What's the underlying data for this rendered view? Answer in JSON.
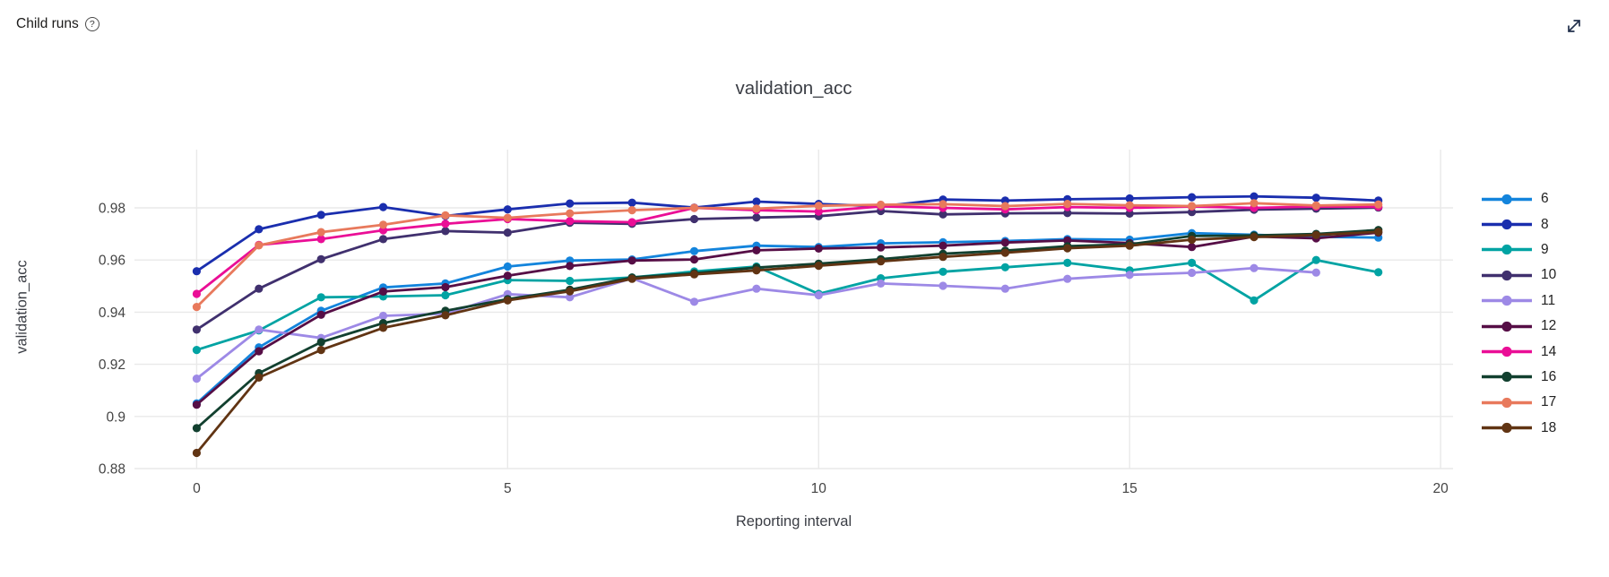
{
  "header": {
    "title": "Child runs"
  },
  "icons": {
    "help": "question-mark-circle",
    "help_glyph": "?",
    "expand": "expand-diagonal-arrow"
  },
  "colors": {
    "grid": "#e9e9e9",
    "tick_text": "#444444",
    "title_text": "#3b3e45",
    "header_text": "#1b1a19"
  },
  "chart_data": {
    "type": "line",
    "title": "validation_acc",
    "xlabel": "Reporting interval",
    "ylabel": "validation_acc",
    "x": [
      0,
      1,
      2,
      3,
      4,
      5,
      6,
      7,
      8,
      9,
      10,
      11,
      12,
      13,
      14,
      15,
      16,
      17,
      18,
      19
    ],
    "xlim": [
      -1,
      20.2
    ],
    "ylim": [
      0.88,
      0.992
    ],
    "x_ticks": [
      0,
      5,
      10,
      15,
      20
    ],
    "y_ticks": [
      0.88,
      0.9,
      0.92,
      0.94,
      0.96,
      0.98
    ],
    "y_tick_labels": [
      "0.88",
      "0.9",
      "0.92",
      "0.94",
      "0.96",
      "0.98"
    ],
    "grid": true,
    "marker": "circle",
    "legend_position": "right",
    "series": [
      {
        "name": "6",
        "color": "#1384dc",
        "values": [
          0.905,
          0.9265,
          0.9405,
          0.9495,
          0.951,
          0.9575,
          0.9598,
          0.9602,
          0.9634,
          0.9655,
          0.965,
          0.9664,
          0.9668,
          0.9673,
          0.968,
          0.9678,
          0.9703,
          0.9697,
          0.9689,
          0.9686
        ]
      },
      {
        "name": "8",
        "color": "#1a2eae",
        "values": [
          0.9557,
          0.9718,
          0.9773,
          0.9803,
          0.9769,
          0.9794,
          0.9817,
          0.982,
          0.9801,
          0.9824,
          0.9815,
          0.9806,
          0.9832,
          0.9828,
          0.9833,
          0.9836,
          0.9841,
          0.9844,
          0.9839,
          0.9828
        ]
      },
      {
        "name": "9",
        "color": "#00a3a3",
        "values": [
          0.9255,
          0.933,
          0.9457,
          0.946,
          0.9465,
          0.9523,
          0.952,
          0.9533,
          0.9556,
          0.9575,
          0.947,
          0.953,
          0.9555,
          0.9572,
          0.9589,
          0.956,
          0.9589,
          0.9445,
          0.96,
          0.9553
        ]
      },
      {
        "name": "10",
        "color": "#40306e",
        "values": [
          0.9333,
          0.949,
          0.9603,
          0.968,
          0.9711,
          0.9705,
          0.9743,
          0.9739,
          0.9757,
          0.9763,
          0.9768,
          0.9788,
          0.9775,
          0.9779,
          0.978,
          0.9778,
          0.9784,
          0.9793,
          0.9797,
          0.9801
        ]
      },
      {
        "name": "11",
        "color": "#9d89e6",
        "values": [
          0.9145,
          0.9333,
          0.9301,
          0.9386,
          0.9394,
          0.9469,
          0.9457,
          0.953,
          0.944,
          0.949,
          0.9465,
          0.951,
          0.9501,
          0.949,
          0.9528,
          0.9543,
          0.9551,
          0.9569,
          0.9552
        ]
      },
      {
        "name": "12",
        "color": "#560e46",
        "values": [
          0.9045,
          0.925,
          0.939,
          0.9479,
          0.9496,
          0.954,
          0.9577,
          0.9598,
          0.9602,
          0.9637,
          0.9644,
          0.9648,
          0.9655,
          0.9667,
          0.9675,
          0.9665,
          0.965,
          0.969,
          0.9683,
          0.9705
        ]
      },
      {
        "name": "14",
        "color": "#ea0e96",
        "values": [
          0.947,
          0.9658,
          0.968,
          0.9714,
          0.9739,
          0.9757,
          0.9749,
          0.9745,
          0.98,
          0.9791,
          0.9786,
          0.9806,
          0.98,
          0.9794,
          0.9803,
          0.98,
          0.9805,
          0.98,
          0.9805,
          0.9804
        ]
      },
      {
        "name": "16",
        "color": "#12402f",
        "values": [
          0.8955,
          0.9166,
          0.9285,
          0.9358,
          0.9405,
          0.945,
          0.9486,
          0.9533,
          0.9549,
          0.9571,
          0.9586,
          0.9603,
          0.9624,
          0.9636,
          0.9653,
          0.966,
          0.9692,
          0.9694,
          0.97,
          0.9715
        ]
      },
      {
        "name": "17",
        "color": "#e8795c",
        "values": [
          0.942,
          0.9656,
          0.9707,
          0.9735,
          0.9771,
          0.9762,
          0.9779,
          0.9791,
          0.98,
          0.9797,
          0.9808,
          0.9812,
          0.9814,
          0.9807,
          0.9815,
          0.981,
          0.9807,
          0.9818,
          0.9809,
          0.9813
        ]
      },
      {
        "name": "18",
        "color": "#613413",
        "values": [
          0.886,
          0.9149,
          0.9255,
          0.934,
          0.9388,
          0.9445,
          0.948,
          0.9528,
          0.9545,
          0.956,
          0.9578,
          0.9595,
          0.9612,
          0.9628,
          0.9645,
          0.9655,
          0.9678,
          0.9688,
          0.9696,
          0.9708
        ]
      }
    ]
  }
}
